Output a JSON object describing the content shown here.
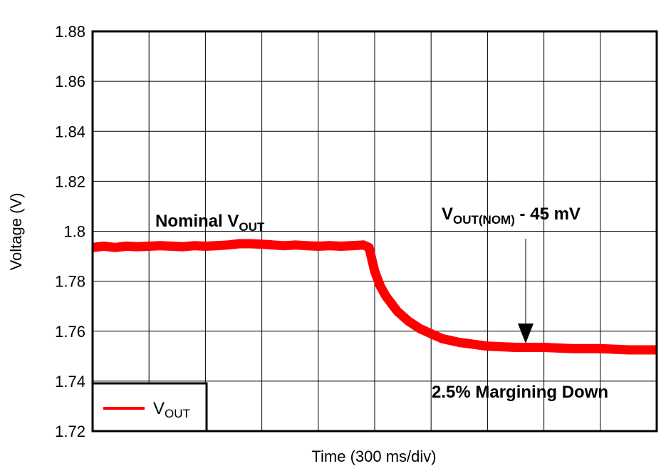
{
  "chart_data": {
    "type": "line",
    "x_label": "Time (300 ms/div)",
    "y_label": "Voltage (V)",
    "xlim": [
      0,
      10
    ],
    "ylim": [
      1.72,
      1.88
    ],
    "yticks": [
      1.72,
      1.74,
      1.76,
      1.78,
      1.8,
      1.82,
      1.84,
      1.86,
      1.88
    ],
    "grid": true,
    "legend": "lower left",
    "series": [
      {
        "name": "V",
        "name_subscript": "OUT",
        "color": "#ff0000",
        "x": [
          0,
          0.2,
          0.4,
          0.6,
          0.8,
          1.0,
          1.2,
          1.4,
          1.6,
          1.8,
          2.0,
          2.2,
          2.4,
          2.6,
          2.8,
          3.0,
          3.2,
          3.4,
          3.6,
          3.8,
          4.0,
          4.2,
          4.4,
          4.6,
          4.8,
          4.9,
          5.0,
          5.1,
          5.2,
          5.4,
          5.6,
          5.8,
          6.0,
          6.2,
          6.5,
          7.0,
          7.5,
          8.0,
          8.5,
          9.0,
          9.5,
          10.0
        ],
        "values": [
          1.7935,
          1.794,
          1.7935,
          1.794,
          1.7938,
          1.794,
          1.7942,
          1.794,
          1.7938,
          1.7942,
          1.794,
          1.7942,
          1.7945,
          1.795,
          1.795,
          1.7948,
          1.7945,
          1.7942,
          1.7945,
          1.7942,
          1.794,
          1.7942,
          1.794,
          1.7942,
          1.7945,
          1.7935,
          1.784,
          1.778,
          1.774,
          1.768,
          1.764,
          1.761,
          1.759,
          1.757,
          1.7555,
          1.754,
          1.7535,
          1.7535,
          1.753,
          1.753,
          1.7525,
          1.7525
        ]
      }
    ],
    "annotations": [
      {
        "text": "Nominal V",
        "subscript": "OUT"
      },
      {
        "text": "V",
        "subscript": "OUT(NOM)",
        "suffix": " - 45 mV"
      },
      {
        "text": "2.5% Margining Down"
      }
    ]
  }
}
